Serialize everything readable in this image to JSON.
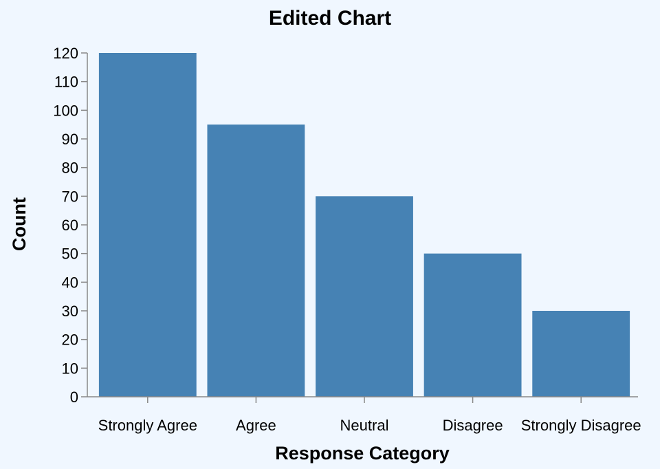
{
  "chart_data": {
    "type": "bar",
    "title": "Edited Chart",
    "xlabel": "Response Category",
    "ylabel": "Count",
    "categories": [
      "Strongly Agree",
      "Agree",
      "Neutral",
      "Disagree",
      "Strongly Disagree"
    ],
    "values": [
      120,
      95,
      70,
      50,
      30
    ],
    "ylim": [
      0,
      120
    ],
    "yticks": [
      0,
      10,
      20,
      30,
      40,
      50,
      60,
      70,
      80,
      90,
      100,
      110,
      120
    ],
    "grid": false,
    "legend": "none",
    "bar_color": "#4682b4",
    "background_color": "#f0f7ff",
    "axis_color": "#888888"
  }
}
